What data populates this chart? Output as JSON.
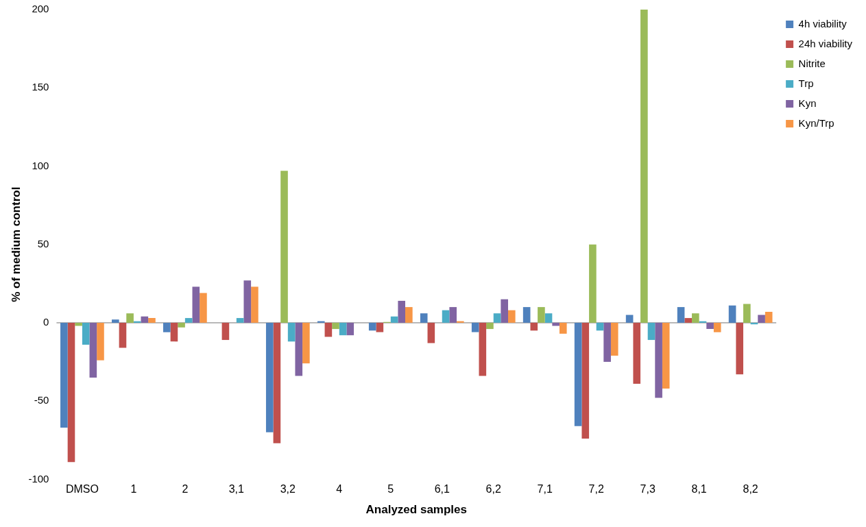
{
  "chart_data": {
    "type": "bar",
    "xlabel": "Analyzed samples",
    "ylabel": "% of medium control",
    "categories": [
      "DMSO",
      "1",
      "2",
      "3,1",
      "3,2",
      "4",
      "5",
      "6,1",
      "6,2",
      "7,1",
      "7,2",
      "7,3",
      "8,1",
      "8,2"
    ],
    "series": [
      {
        "name": "4h viability",
        "color": "#4f81bd",
        "values": [
          -67,
          2,
          -6,
          0,
          -70,
          1,
          -5,
          6,
          -6,
          10,
          -66,
          5,
          10,
          11
        ]
      },
      {
        "name": "24h viability",
        "color": "#c0504d",
        "values": [
          -89,
          -16,
          -12,
          -11,
          -77,
          -9,
          -6,
          -13,
          -34,
          -5,
          -74,
          -39,
          3,
          -33
        ]
      },
      {
        "name": "Nitrite",
        "color": "#9bbb59",
        "values": [
          -2,
          6,
          -3,
          0,
          97,
          -4,
          0.5,
          0,
          -4,
          10,
          50,
          200,
          6,
          12
        ]
      },
      {
        "name": "Trp",
        "color": "#4bacc6",
        "values": [
          -14,
          1,
          3,
          3,
          -12,
          -8,
          4,
          8,
          6,
          6,
          -5,
          -11,
          1,
          -1
        ]
      },
      {
        "name": "Kyn",
        "color": "#8064a2",
        "values": [
          -35,
          4,
          23,
          27,
          -34,
          -8,
          14,
          10,
          15,
          -2,
          -25,
          -48,
          -4,
          5
        ]
      },
      {
        "name": "Kyn/Trp",
        "color": "#f79646",
        "values": [
          -24,
          3,
          19,
          23,
          -26,
          0,
          10,
          1,
          8,
          -7,
          -21,
          -42,
          -6,
          7
        ]
      }
    ],
    "ref_lines": [
      {
        "axis": "y",
        "value": 0,
        "color": "#a0a0a0"
      }
    ],
    "ylim": [
      -100,
      200
    ],
    "yticks": [
      -100,
      -50,
      0,
      50,
      100,
      150,
      200
    ],
    "grid": false,
    "legend": "top right"
  }
}
